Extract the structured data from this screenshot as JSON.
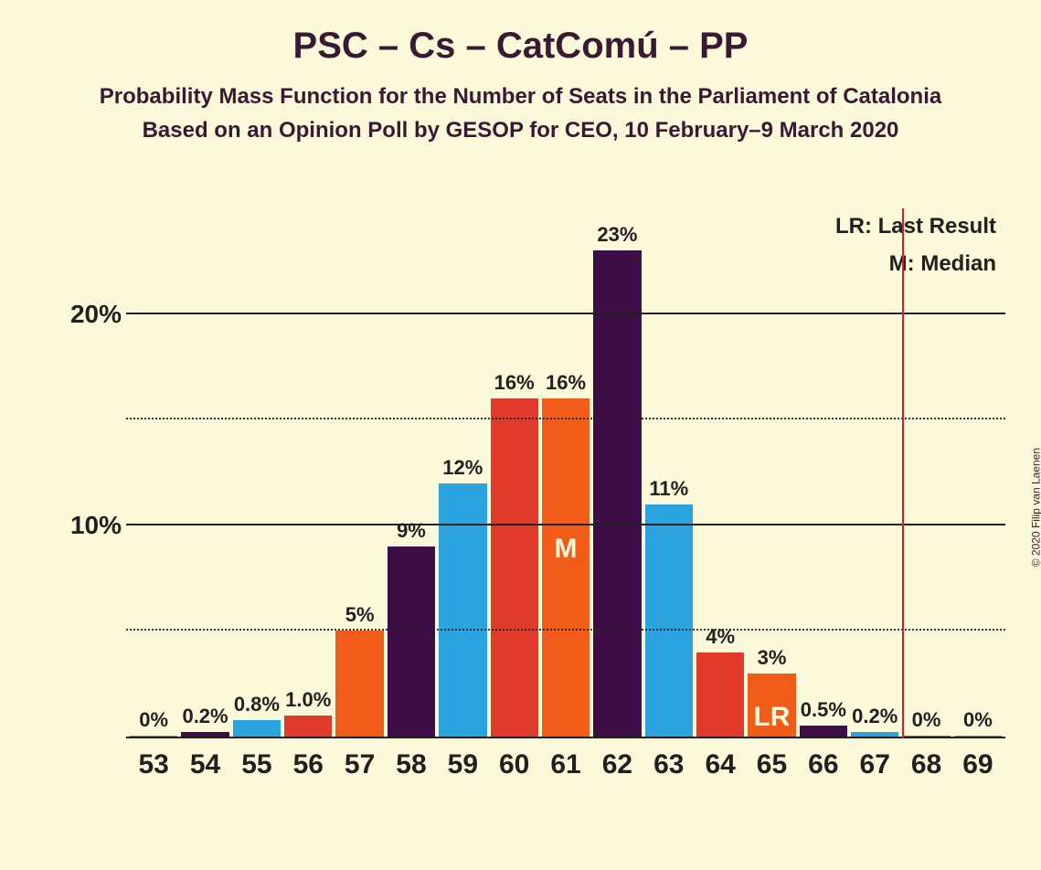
{
  "title": "PSC – Cs – CatComú – PP",
  "subtitle_line1": "Probability Mass Function for the Number of Seats in the Parliament of Catalonia",
  "subtitle_line2": "Based on an Opinion Poll by GESOP for CEO, 10 February–9 March 2020",
  "copyright": "© 2020 Filip van Laenen",
  "legend": {
    "lr": "LR: Last Result",
    "m": "M: Median"
  },
  "chart": {
    "type": "bar",
    "background_color": "#fcf8da",
    "text_color": "#231f20",
    "title_color": "#3a1a33",
    "majority_line_color": "#e31b23",
    "majority_line_between": [
      67,
      68
    ],
    "ylim": [
      0,
      25
    ],
    "y_axis": {
      "gridlines": [
        {
          "value": 5,
          "style": "dotted",
          "label": ""
        },
        {
          "value": 10,
          "style": "solid",
          "label": "10%"
        },
        {
          "value": 15,
          "style": "dotted",
          "label": ""
        },
        {
          "value": 20,
          "style": "solid",
          "label": "20%"
        }
      ]
    },
    "palette": {
      "purple": "#3e0f47",
      "red": "#e03a2a",
      "orange": "#f25c19",
      "blue": "#2ba3df"
    },
    "categories": [
      "53",
      "54",
      "55",
      "56",
      "57",
      "58",
      "59",
      "60",
      "61",
      "62",
      "63",
      "64",
      "65",
      "66",
      "67",
      "68",
      "69"
    ],
    "bars": [
      {
        "x": "53",
        "value": 0.0,
        "label": "0%",
        "color": "#2ba3df",
        "inner": ""
      },
      {
        "x": "54",
        "value": 0.2,
        "label": "0.2%",
        "color": "#3e0f47",
        "inner": ""
      },
      {
        "x": "55",
        "value": 0.8,
        "label": "0.8%",
        "color": "#2ba3df",
        "inner": ""
      },
      {
        "x": "56",
        "value": 1.0,
        "label": "1.0%",
        "color": "#e03a2a",
        "inner": ""
      },
      {
        "x": "57",
        "value": 5.0,
        "label": "5%",
        "color": "#f25c19",
        "inner": ""
      },
      {
        "x": "58",
        "value": 9.0,
        "label": "9%",
        "color": "#3e0f47",
        "inner": ""
      },
      {
        "x": "59",
        "value": 12.0,
        "label": "12%",
        "color": "#2ba3df",
        "inner": ""
      },
      {
        "x": "60",
        "value": 16.0,
        "label": "16%",
        "color": "#e03a2a",
        "inner": ""
      },
      {
        "x": "61",
        "value": 16.0,
        "label": "16%",
        "color": "#f25c19",
        "inner": "M",
        "inner_pos": "upper"
      },
      {
        "x": "62",
        "value": 23.0,
        "label": "23%",
        "color": "#3e0f47",
        "inner": ""
      },
      {
        "x": "63",
        "value": 11.0,
        "label": "11%",
        "color": "#2ba3df",
        "inner": ""
      },
      {
        "x": "64",
        "value": 4.0,
        "label": "4%",
        "color": "#e03a2a",
        "inner": ""
      },
      {
        "x": "65",
        "value": 3.0,
        "label": "3%",
        "color": "#f25c19",
        "inner": "LR",
        "inner_pos": "lower"
      },
      {
        "x": "66",
        "value": 0.5,
        "label": "0.5%",
        "color": "#3e0f47",
        "inner": ""
      },
      {
        "x": "67",
        "value": 0.2,
        "label": "0.2%",
        "color": "#2ba3df",
        "inner": ""
      },
      {
        "x": "68",
        "value": 0.0,
        "label": "0%",
        "color": "#e03a2a",
        "inner": ""
      },
      {
        "x": "69",
        "value": 0.0,
        "label": "0%",
        "color": "#f25c19",
        "inner": ""
      }
    ],
    "bar_label_fontsize": 22,
    "xaxis_fontsize": 30,
    "yaxis_fontsize": 28
  }
}
